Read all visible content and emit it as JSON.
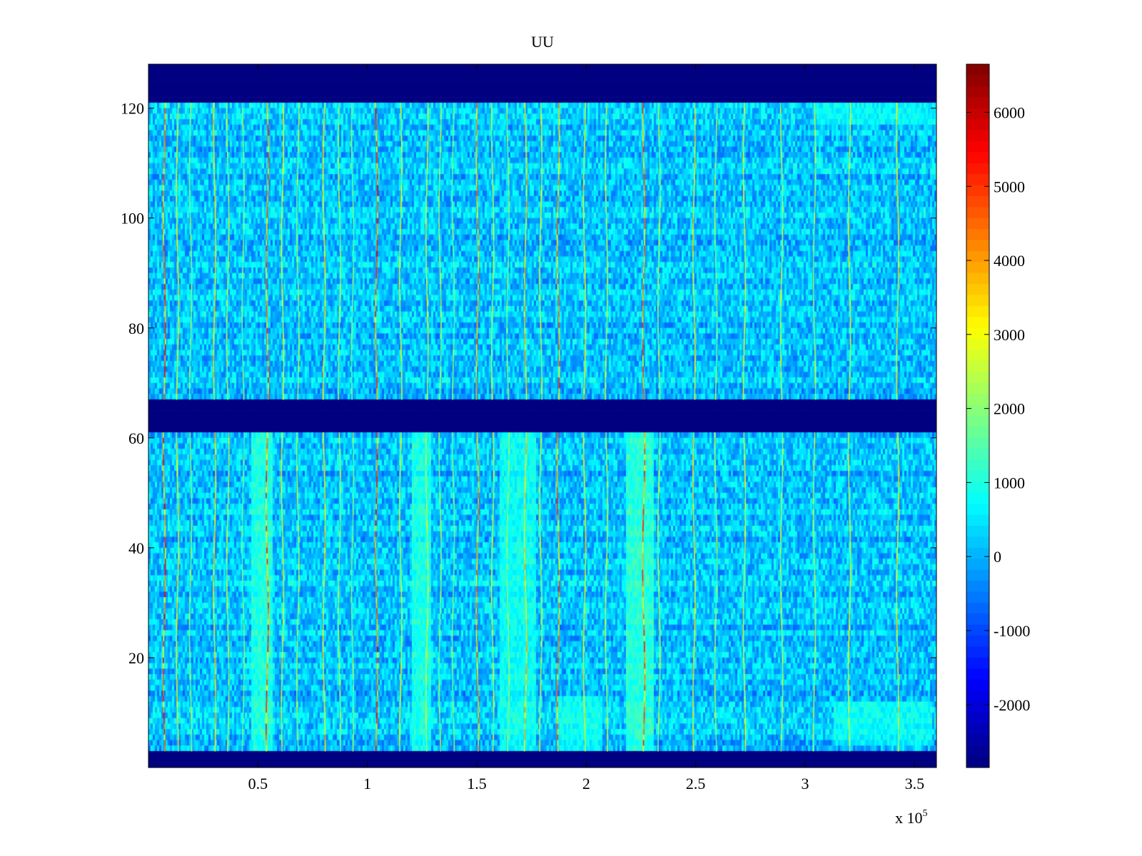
{
  "chart_data": {
    "type": "heatmap",
    "title": "UU",
    "xlabel": "",
    "ylabel": "",
    "x_multiplier_label": {
      "base": "x 10",
      "exponent": "5"
    },
    "xlim": [
      0,
      3.6
    ],
    "ylim": [
      0,
      128
    ],
    "x_ticks": [
      0.5,
      1,
      1.5,
      2,
      2.5,
      3,
      3.5
    ],
    "x_tick_labels": [
      "0.5",
      "1",
      "1.5",
      "2",
      "2.5",
      "3",
      "3.5"
    ],
    "y_ticks": [
      20,
      40,
      60,
      80,
      100,
      120
    ],
    "y_tick_labels": [
      "20",
      "40",
      "60",
      "80",
      "100",
      "120"
    ],
    "colormap": "jet",
    "color_limits": [
      -2850,
      6650
    ],
    "colorbar_ticks": [
      -2000,
      -1000,
      0,
      1000,
      2000,
      3000,
      4000,
      5000,
      6000
    ],
    "colorbar_tick_labels": [
      "-2000",
      "-1000",
      "0",
      "1000",
      "2000",
      "3000",
      "4000",
      "5000",
      "6000"
    ],
    "background_value": 150,
    "masked_bands": [
      {
        "y_from": 0,
        "y_to": 3,
        "value": -2850
      },
      {
        "y_from": 61.5,
        "y_to": 67.5,
        "value": -2850
      },
      {
        "y_from": 121.5,
        "y_to": 128,
        "value": -2850
      }
    ],
    "bright_patches": [
      {
        "x_from": 0.47,
        "x_to": 0.57,
        "y_from": 3,
        "y_to": 61.5,
        "value": 1000
      },
      {
        "x_from": 1.2,
        "x_to": 1.29,
        "y_from": 3,
        "y_to": 61.5,
        "value": 950
      },
      {
        "x_from": 1.6,
        "x_to": 1.77,
        "y_from": 3,
        "y_to": 61.5,
        "value": 800
      },
      {
        "x_from": 1.87,
        "x_to": 2.07,
        "y_from": 3,
        "y_to": 13,
        "value": 750
      },
      {
        "x_from": 2.18,
        "x_to": 2.31,
        "y_from": 3,
        "y_to": 61.5,
        "value": 1100
      },
      {
        "x_from": 3.13,
        "x_to": 3.58,
        "y_from": 4,
        "y_to": 12,
        "value": 700
      },
      {
        "x_from": 3.05,
        "x_to": 3.6,
        "y_from": 117,
        "y_to": 121.5,
        "value": 600
      }
    ],
    "vertical_spikes": [
      {
        "x": 0.07,
        "value": 5000
      },
      {
        "x": 0.13,
        "value": 3200
      },
      {
        "x": 0.19,
        "value": 2200
      },
      {
        "x": 0.3,
        "value": 3500
      },
      {
        "x": 0.36,
        "value": 2500
      },
      {
        "x": 0.43,
        "value": 2000
      },
      {
        "x": 0.54,
        "value": 4800
      },
      {
        "x": 0.61,
        "value": 3000
      },
      {
        "x": 0.68,
        "value": 2400
      },
      {
        "x": 0.8,
        "value": 3300
      },
      {
        "x": 0.87,
        "value": 2600
      },
      {
        "x": 0.93,
        "value": 2000
      },
      {
        "x": 1.04,
        "value": 5200
      },
      {
        "x": 1.15,
        "value": 3000
      },
      {
        "x": 1.27,
        "value": 2800
      },
      {
        "x": 1.33,
        "value": 2300
      },
      {
        "x": 1.39,
        "value": 2000
      },
      {
        "x": 1.5,
        "value": 4200
      },
      {
        "x": 1.57,
        "value": 2600
      },
      {
        "x": 1.64,
        "value": 2200
      },
      {
        "x": 1.72,
        "value": 3600
      },
      {
        "x": 1.79,
        "value": 2800
      },
      {
        "x": 1.87,
        "value": 4500
      },
      {
        "x": 1.99,
        "value": 3200
      },
      {
        "x": 2.09,
        "value": 2600
      },
      {
        "x": 2.26,
        "value": 4600
      },
      {
        "x": 2.33,
        "value": 2600
      },
      {
        "x": 2.49,
        "value": 3400
      },
      {
        "x": 2.59,
        "value": 2300
      },
      {
        "x": 2.72,
        "value": 2900
      },
      {
        "x": 2.89,
        "value": 2600
      },
      {
        "x": 3.04,
        "value": 2400
      },
      {
        "x": 3.2,
        "value": 3000
      },
      {
        "x": 3.42,
        "value": 3300
      }
    ]
  }
}
